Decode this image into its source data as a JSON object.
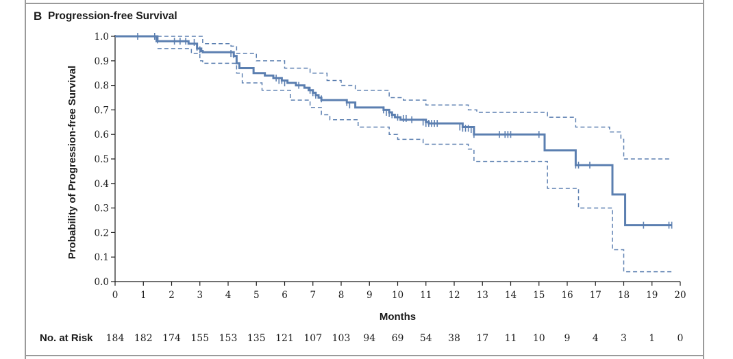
{
  "panel": {
    "letter": "B",
    "title": "Progression-free Survival"
  },
  "colors": {
    "curve": "#5b7fb0",
    "axis": "#1a1a1a",
    "frame": "#9a9a9a"
  },
  "chart_data": {
    "type": "line",
    "subtype": "kaplan-meier",
    "title": "Progression-free Survival",
    "xlabel": "Months",
    "ylabel": "Probability of Progression-free Survival",
    "xlim": [
      0,
      20
    ],
    "ylim": [
      0,
      1.0
    ],
    "xticks": [
      "0",
      "1",
      "2",
      "3",
      "4",
      "5",
      "6",
      "7",
      "8",
      "9",
      "10",
      "11",
      "12",
      "13",
      "14",
      "15",
      "16",
      "17",
      "18",
      "19",
      "20"
    ],
    "yticks": [
      "0.0",
      "0.1",
      "0.2",
      "0.3",
      "0.4",
      "0.5",
      "0.6",
      "0.7",
      "0.8",
      "0.9",
      "1.0"
    ],
    "grid": false,
    "series": [
      {
        "role": "estimate",
        "style": "solid",
        "steps": [
          [
            0,
            1.0
          ],
          [
            1.5,
            0.98
          ],
          [
            2.6,
            0.97
          ],
          [
            2.9,
            0.95
          ],
          [
            3.05,
            0.94
          ],
          [
            3.1,
            0.935
          ],
          [
            4.2,
            0.92
          ],
          [
            4.3,
            0.89
          ],
          [
            4.4,
            0.87
          ],
          [
            4.9,
            0.85
          ],
          [
            5.3,
            0.84
          ],
          [
            5.6,
            0.83
          ],
          [
            5.9,
            0.82
          ],
          [
            6.1,
            0.81
          ],
          [
            6.4,
            0.8
          ],
          [
            6.7,
            0.79
          ],
          [
            6.85,
            0.78
          ],
          [
            7.0,
            0.77
          ],
          [
            7.1,
            0.76
          ],
          [
            7.2,
            0.75
          ],
          [
            7.3,
            0.74
          ],
          [
            8.2,
            0.73
          ],
          [
            8.5,
            0.71
          ],
          [
            9.5,
            0.7
          ],
          [
            9.7,
            0.69
          ],
          [
            9.8,
            0.68
          ],
          [
            9.9,
            0.67
          ],
          [
            10.1,
            0.66
          ],
          [
            11.0,
            0.65
          ],
          [
            11.1,
            0.645
          ],
          [
            12.3,
            0.63
          ],
          [
            12.7,
            0.6
          ],
          [
            15.2,
            0.535
          ],
          [
            16.3,
            0.475
          ],
          [
            17.6,
            0.355
          ],
          [
            18.05,
            0.23
          ],
          [
            19.7,
            0.23
          ]
        ],
        "censored": [
          [
            0.8,
            1.0
          ],
          [
            1.4,
            1.0
          ],
          [
            1.45,
            0.99
          ],
          [
            1.5,
            0.985
          ],
          [
            2.1,
            0.98
          ],
          [
            2.3,
            0.98
          ],
          [
            2.5,
            0.98
          ],
          [
            2.8,
            0.975
          ],
          [
            2.9,
            0.955
          ],
          [
            3.0,
            0.945
          ],
          [
            4.1,
            0.93
          ],
          [
            4.2,
            0.925
          ],
          [
            5.7,
            0.83
          ],
          [
            5.8,
            0.82
          ],
          [
            5.9,
            0.82
          ],
          [
            6.0,
            0.81
          ],
          [
            6.5,
            0.8
          ],
          [
            6.9,
            0.78
          ],
          [
            7.0,
            0.77
          ],
          [
            7.1,
            0.76
          ],
          [
            7.3,
            0.745
          ],
          [
            8.2,
            0.73
          ],
          [
            8.3,
            0.72
          ],
          [
            9.5,
            0.7
          ],
          [
            9.6,
            0.69
          ],
          [
            9.7,
            0.685
          ],
          [
            9.8,
            0.68
          ],
          [
            10.0,
            0.67
          ],
          [
            10.2,
            0.665
          ],
          [
            10.3,
            0.665
          ],
          [
            10.5,
            0.66
          ],
          [
            10.9,
            0.65
          ],
          [
            11.0,
            0.645
          ],
          [
            11.1,
            0.645
          ],
          [
            11.2,
            0.645
          ],
          [
            11.3,
            0.645
          ],
          [
            11.4,
            0.645
          ],
          [
            12.2,
            0.63
          ],
          [
            12.3,
            0.625
          ],
          [
            12.4,
            0.625
          ],
          [
            12.5,
            0.625
          ],
          [
            12.6,
            0.62
          ],
          [
            12.7,
            0.6
          ],
          [
            13.6,
            0.6
          ],
          [
            13.8,
            0.6
          ],
          [
            13.9,
            0.6
          ],
          [
            14.0,
            0.6
          ],
          [
            15.0,
            0.6
          ],
          [
            16.3,
            0.475
          ],
          [
            16.4,
            0.475
          ],
          [
            16.8,
            0.475
          ],
          [
            18.7,
            0.23
          ],
          [
            19.6,
            0.23
          ],
          [
            19.7,
            0.23
          ]
        ]
      },
      {
        "role": "upper-ci",
        "style": "dashed",
        "steps": [
          [
            1.5,
            1.0
          ],
          [
            3.1,
            0.97
          ],
          [
            4.1,
            0.96
          ],
          [
            4.3,
            0.93
          ],
          [
            5.0,
            0.9
          ],
          [
            6.0,
            0.87
          ],
          [
            6.9,
            0.85
          ],
          [
            7.5,
            0.82
          ],
          [
            8.0,
            0.8
          ],
          [
            8.5,
            0.78
          ],
          [
            9.7,
            0.75
          ],
          [
            10.2,
            0.74
          ],
          [
            11.0,
            0.72
          ],
          [
            12.5,
            0.7
          ],
          [
            12.8,
            0.69
          ],
          [
            15.3,
            0.67
          ],
          [
            16.3,
            0.63
          ],
          [
            17.5,
            0.61
          ],
          [
            17.9,
            0.58
          ],
          [
            18.0,
            0.5
          ],
          [
            19.7,
            0.5
          ]
        ]
      },
      {
        "role": "lower-ci",
        "style": "dashed",
        "steps": [
          [
            1.5,
            0.95
          ],
          [
            2.7,
            0.93
          ],
          [
            3.0,
            0.9
          ],
          [
            3.1,
            0.89
          ],
          [
            4.3,
            0.85
          ],
          [
            4.5,
            0.81
          ],
          [
            5.2,
            0.78
          ],
          [
            6.2,
            0.74
          ],
          [
            6.9,
            0.71
          ],
          [
            7.3,
            0.68
          ],
          [
            7.6,
            0.66
          ],
          [
            8.6,
            0.63
          ],
          [
            9.7,
            0.6
          ],
          [
            10.0,
            0.58
          ],
          [
            10.9,
            0.56
          ],
          [
            12.5,
            0.54
          ],
          [
            12.7,
            0.49
          ],
          [
            15.2,
            0.49
          ],
          [
            15.3,
            0.38
          ],
          [
            16.4,
            0.3
          ],
          [
            17.6,
            0.13
          ],
          [
            18.0,
            0.04
          ],
          [
            19.7,
            0.04
          ]
        ]
      }
    ],
    "risk_table": {
      "label": "No. at Risk",
      "values": [
        "184",
        "182",
        "174",
        "155",
        "153",
        "135",
        "121",
        "107",
        "103",
        "94",
        "69",
        "54",
        "38",
        "17",
        "11",
        "10",
        "9",
        "4",
        "3",
        "1",
        "0"
      ]
    }
  }
}
